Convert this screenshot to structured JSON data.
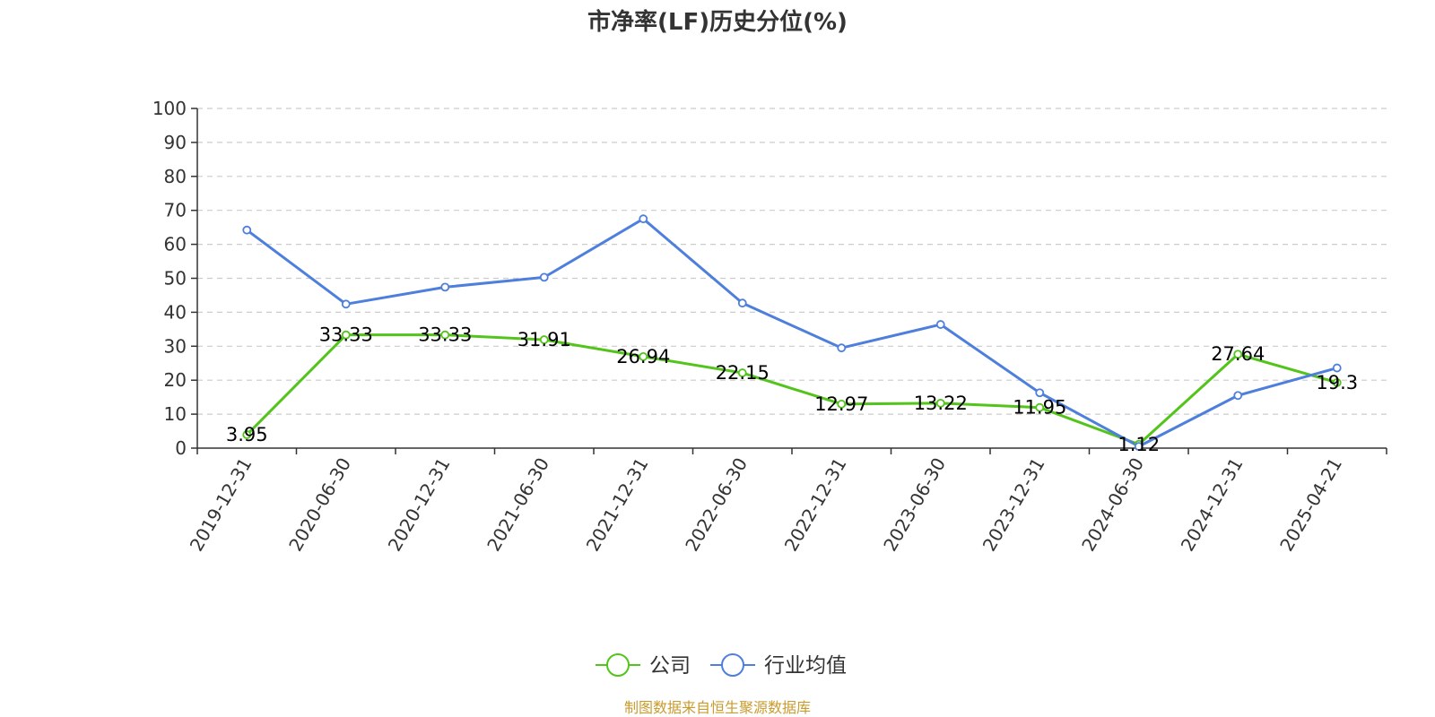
{
  "chart_data": {
    "type": "line",
    "title": "市净率(LF)历史分位(%)",
    "ylabel": "(%)",
    "xlabel": "",
    "ylim": [
      0,
      100
    ],
    "yticks": [
      0,
      10,
      20,
      30,
      40,
      50,
      60,
      70,
      80,
      90,
      100
    ],
    "grid": true,
    "legend_position": "bottom-center",
    "categories": [
      "2019-12-31",
      "2020-06-30",
      "2020-12-31",
      "2021-06-30",
      "2021-12-31",
      "2022-06-30",
      "2022-12-31",
      "2023-06-30",
      "2023-12-31",
      "2024-06-30",
      "2024-12-31",
      "2025-04-21"
    ],
    "series": [
      {
        "name": "公司",
        "color": "#52c41a",
        "show_labels": true,
        "values": [
          3.95,
          33.33,
          33.33,
          31.91,
          26.94,
          22.15,
          12.97,
          13.22,
          11.95,
          1.12,
          27.64,
          19.3
        ]
      },
      {
        "name": "行业均值",
        "color": "#4e7fdc",
        "show_labels": false,
        "values": [
          64.2,
          42.4,
          47.4,
          50.3,
          67.5,
          42.7,
          29.5,
          36.4,
          16.3,
          0.5,
          15.5,
          23.6
        ]
      }
    ],
    "ylabel_color": "#ff0000"
  },
  "source_text": "制图数据来自恒生聚源数据库",
  "source_color": "#c89b2e"
}
